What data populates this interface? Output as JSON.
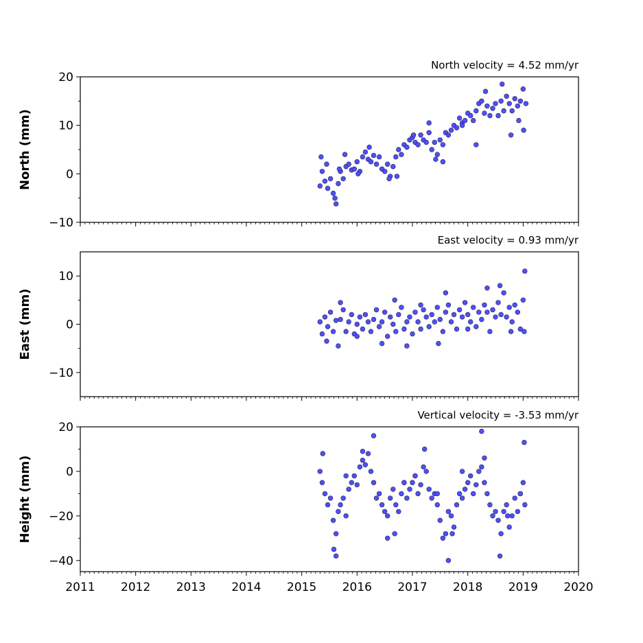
{
  "chart_data": [
    {
      "type": "scatter",
      "title": "North velocity = 4.52 mm/yr",
      "ylabel": "North (mm)",
      "xlim": [
        2011,
        2020
      ],
      "ylim": [
        -10,
        20
      ],
      "yticks": [
        -10,
        0,
        10,
        20
      ],
      "ytick_labels": [
        "−10",
        "0",
        "10",
        "20"
      ],
      "series": [
        {
          "x": [
            2015.33,
            2015.37,
            2015.42,
            2015.47,
            2015.52,
            2015.57,
            2015.62,
            2015.66,
            2015.7,
            2015.75,
            2015.8,
            2015.85,
            2015.9,
            2015.95,
            2016.0,
            2016.05,
            2016.1,
            2016.15,
            2016.2,
            2016.25,
            2016.3,
            2016.35,
            2016.4,
            2016.45,
            2016.5,
            2016.55,
            2016.6,
            2016.65,
            2016.7,
            2016.75,
            2016.8,
            2016.85,
            2016.9,
            2016.95,
            2017.0,
            2017.05,
            2017.1,
            2017.15,
            2017.2,
            2017.25,
            2017.3,
            2017.35,
            2017.4,
            2017.45,
            2017.5,
            2017.55,
            2017.6,
            2017.65,
            2017.7,
            2017.75,
            2017.8,
            2017.85,
            2017.9,
            2017.95,
            2018.0,
            2018.05,
            2018.1,
            2018.15,
            2018.2,
            2018.25,
            2018.3,
            2018.35,
            2018.4,
            2018.45,
            2018.5,
            2018.55,
            2018.6,
            2018.65,
            2018.7,
            2018.75,
            2018.8,
            2018.85,
            2018.9,
            2018.95,
            2019.0,
            2019.05,
            2015.35,
            2015.45,
            2015.6,
            2015.68,
            2015.78,
            2016.02,
            2016.22,
            2016.58,
            2016.72,
            2017.02,
            2017.3,
            2017.42,
            2017.55,
            2017.9,
            2018.15,
            2018.32,
            2018.62,
            2018.78,
            2018.92,
            2019.01
          ],
          "y": [
            -2.5,
            0.5,
            -1.5,
            -3.0,
            -1.0,
            -4.0,
            -6.2,
            -2.0,
            0.5,
            -1.0,
            1.5,
            2.0,
            0.8,
            1.0,
            2.5,
            0.5,
            3.5,
            4.5,
            3.0,
            2.5,
            3.8,
            2.0,
            3.5,
            1.0,
            0.5,
            2.0,
            -0.5,
            1.5,
            3.5,
            5.0,
            4.0,
            6.0,
            5.5,
            7.0,
            7.5,
            6.5,
            6.0,
            8.0,
            7.0,
            6.5,
            8.5,
            5.0,
            6.5,
            4.0,
            7.0,
            6.0,
            8.5,
            8.0,
            9.0,
            10.0,
            9.5,
            11.5,
            10.5,
            11.0,
            12.5,
            12.0,
            11.0,
            13.0,
            14.5,
            15.0,
            12.5,
            14.0,
            12.0,
            13.5,
            14.5,
            12.0,
            15.0,
            13.0,
            16.0,
            14.5,
            13.0,
            15.5,
            14.0,
            15.0,
            17.5,
            14.5,
            3.5,
            2.0,
            -5.0,
            1.0,
            4.0,
            0.0,
            5.5,
            -1.0,
            -0.5,
            8.0,
            10.5,
            3.0,
            2.5,
            10.0,
            6.0,
            17.0,
            18.5,
            8.0,
            11.0,
            9.0
          ]
        }
      ]
    },
    {
      "type": "scatter",
      "title": "East velocity = 0.93 mm/yr",
      "ylabel": "East (mm)",
      "xlim": [
        2011,
        2020
      ],
      "ylim": [
        -15,
        15
      ],
      "yticks": [
        -10,
        0,
        10
      ],
      "ytick_labels": [
        "−10",
        "0",
        "10"
      ],
      "series": [
        {
          "x": [
            2015.33,
            2015.37,
            2015.42,
            2015.47,
            2015.52,
            2015.57,
            2015.62,
            2015.66,
            2015.7,
            2015.75,
            2015.8,
            2015.85,
            2015.9,
            2015.95,
            2016.0,
            2016.05,
            2016.1,
            2016.15,
            2016.2,
            2016.25,
            2016.3,
            2016.35,
            2016.4,
            2016.45,
            2016.5,
            2016.55,
            2016.6,
            2016.65,
            2016.7,
            2016.75,
            2016.8,
            2016.85,
            2016.9,
            2016.95,
            2017.0,
            2017.05,
            2017.1,
            2017.15,
            2017.2,
            2017.25,
            2017.3,
            2017.35,
            2017.4,
            2017.45,
            2017.5,
            2017.55,
            2017.6,
            2017.65,
            2017.7,
            2017.75,
            2017.8,
            2017.85,
            2017.9,
            2017.95,
            2018.0,
            2018.05,
            2018.1,
            2018.15,
            2018.2,
            2018.25,
            2018.3,
            2018.35,
            2018.4,
            2018.45,
            2018.5,
            2018.55,
            2018.6,
            2018.65,
            2018.7,
            2018.75,
            2018.8,
            2018.85,
            2018.9,
            2018.95,
            2019.0,
            2019.03,
            2015.45,
            2015.7,
            2016.0,
            2016.45,
            2016.68,
            2016.9,
            2017.15,
            2017.47,
            2017.6,
            2018.0,
            2018.35,
            2018.58,
            2018.78,
            2019.02
          ],
          "y": [
            0.5,
            -2.0,
            1.5,
            -0.5,
            2.5,
            -1.5,
            0.8,
            -4.5,
            1.0,
            3.0,
            -1.5,
            0.5,
            2.0,
            -2.0,
            0.0,
            1.5,
            -1.0,
            2.0,
            0.5,
            -1.5,
            1.0,
            3.0,
            -0.5,
            0.5,
            2.5,
            -2.5,
            1.5,
            0.0,
            -1.5,
            2.0,
            3.5,
            -1.0,
            0.5,
            1.5,
            -2.0,
            2.5,
            0.5,
            -1.0,
            3.0,
            1.5,
            -0.5,
            2.0,
            0.5,
            3.5,
            1.0,
            -1.5,
            2.5,
            4.0,
            0.5,
            2.0,
            -1.0,
            3.0,
            1.5,
            4.5,
            2.0,
            0.5,
            3.5,
            -0.5,
            2.5,
            1.0,
            4.0,
            2.5,
            -1.5,
            3.0,
            1.5,
            4.5,
            2.0,
            6.5,
            1.5,
            3.5,
            0.5,
            4.0,
            2.5,
            -1.0,
            5.0,
            11.0,
            -3.5,
            4.5,
            -2.5,
            -4.0,
            5.0,
            -4.5,
            4.0,
            -4.0,
            6.5,
            -1.0,
            7.5,
            8.0,
            -1.5,
            -1.5
          ]
        }
      ]
    },
    {
      "type": "scatter",
      "title": "Vertical velocity = -3.53 mm/yr",
      "ylabel": "Height (mm)",
      "xlabel": "",
      "xlim": [
        2011,
        2020
      ],
      "ylim": [
        -45,
        20
      ],
      "yticks": [
        -40,
        -20,
        0,
        20
      ],
      "ytick_labels": [
        "−40",
        "−20",
        "0",
        "20"
      ],
      "series": [
        {
          "x": [
            2015.33,
            2015.37,
            2015.42,
            2015.47,
            2015.52,
            2015.57,
            2015.62,
            2015.66,
            2015.7,
            2015.75,
            2015.8,
            2015.85,
            2015.9,
            2015.95,
            2016.0,
            2016.05,
            2016.1,
            2016.15,
            2016.2,
            2016.25,
            2016.3,
            2016.35,
            2016.4,
            2016.45,
            2016.5,
            2016.55,
            2016.6,
            2016.65,
            2016.7,
            2016.75,
            2016.8,
            2016.85,
            2016.9,
            2016.95,
            2017.0,
            2017.05,
            2017.1,
            2017.15,
            2017.2,
            2017.25,
            2017.3,
            2017.35,
            2017.4,
            2017.45,
            2017.5,
            2017.55,
            2017.6,
            2017.65,
            2017.7,
            2017.75,
            2017.8,
            2017.85,
            2017.9,
            2017.95,
            2018.0,
            2018.05,
            2018.1,
            2018.15,
            2018.2,
            2018.25,
            2018.3,
            2018.35,
            2018.4,
            2018.45,
            2018.5,
            2018.55,
            2018.6,
            2018.65,
            2018.7,
            2018.75,
            2018.8,
            2018.85,
            2018.9,
            2018.95,
            2019.0,
            2019.03,
            2015.38,
            2015.58,
            2015.62,
            2015.8,
            2016.1,
            2016.3,
            2016.55,
            2016.68,
            2016.85,
            2017.05,
            2017.22,
            2017.45,
            2017.65,
            2017.72,
            2017.9,
            2018.25,
            2018.3,
            2018.58,
            2018.72,
            2018.95,
            2019.02
          ],
          "y": [
            0,
            -5,
            -10,
            -15,
            -12,
            -22,
            -28,
            -18,
            -15,
            -12,
            -20,
            -8,
            -5,
            -2,
            -6,
            2,
            5,
            3,
            8,
            0,
            -5,
            -12,
            -10,
            -15,
            -18,
            -20,
            -12,
            -8,
            -15,
            -18,
            -10,
            -5,
            -12,
            -8,
            -5,
            -2,
            -10,
            -6,
            2,
            0,
            -8,
            -12,
            -10,
            -15,
            -22,
            -30,
            -28,
            -18,
            -20,
            -25,
            -15,
            -10,
            -12,
            -8,
            -5,
            -2,
            -10,
            -6,
            0,
            2,
            -5,
            -10,
            -15,
            -20,
            -18,
            -22,
            -28,
            -18,
            -15,
            -25,
            -20,
            -12,
            -18,
            -10,
            -5,
            -15,
            8,
            -35,
            -38,
            -2,
            9,
            16,
            -30,
            -28,
            -5,
            -2,
            10,
            -10,
            -40,
            -28,
            0,
            18,
            6,
            -38,
            -20,
            -10,
            13
          ]
        }
      ]
    }
  ],
  "x_axis": {
    "ticks": [
      2011,
      2012,
      2013,
      2014,
      2015,
      2016,
      2017,
      2018,
      2019,
      2020
    ],
    "tick_labels": [
      "2011",
      "2012",
      "2013",
      "2014",
      "2015",
      "2016",
      "2017",
      "2018",
      "2019",
      "2020"
    ]
  },
  "colors": {
    "marker_fill": "#5050f5",
    "marker_edge": "#1e1e5a",
    "axis": "#000000"
  }
}
